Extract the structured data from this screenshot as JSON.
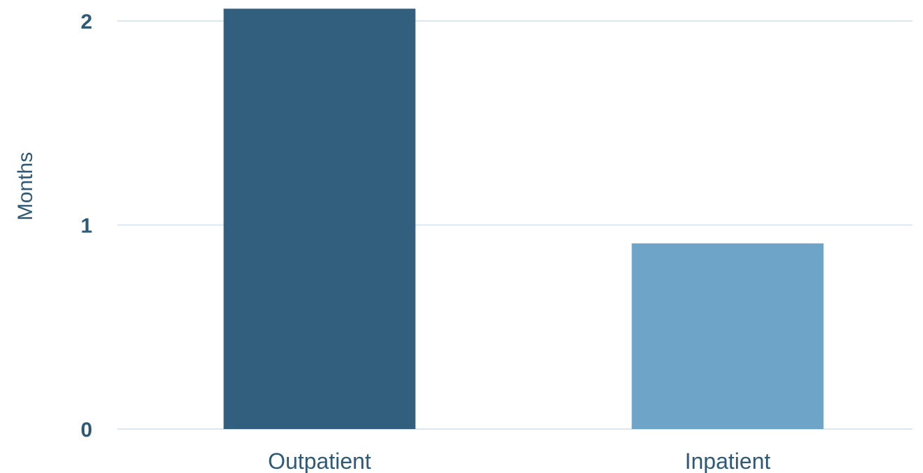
{
  "chart_data": {
    "type": "bar",
    "title": "",
    "xlabel": "",
    "ylabel": "Months",
    "categories": [
      "Outpatient",
      "Inpatient"
    ],
    "values": [
      2.06,
      0.91
    ],
    "ylim": [
      0,
      2
    ],
    "yticks": [
      0,
      1,
      2
    ],
    "grid": true,
    "legend": "none",
    "colors": {
      "bars": [
        "#315f7d",
        "#6ea4c8"
      ],
      "text": "#2e5a78",
      "grid": "#dde7f0"
    }
  }
}
